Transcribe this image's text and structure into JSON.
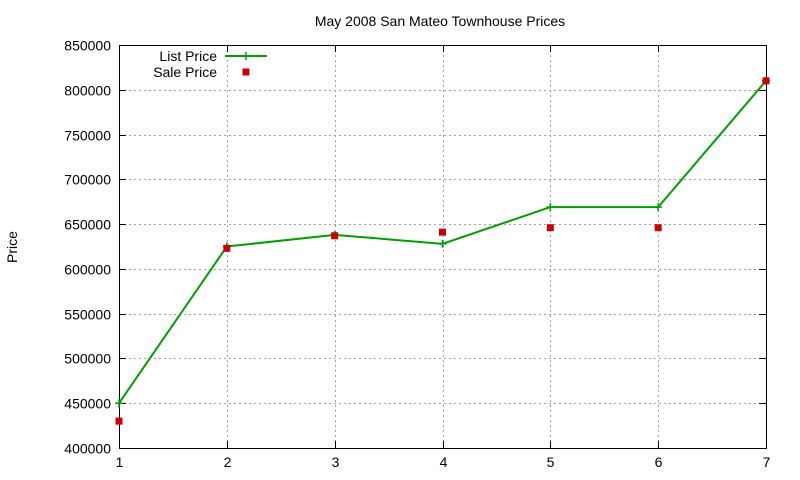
{
  "chart_data": {
    "type": "line",
    "title": "May 2008 San Mateo Townhouse Prices",
    "xlabel": "",
    "ylabel": "Price",
    "x": [
      1,
      2,
      3,
      4,
      5,
      6,
      7
    ],
    "xlim": [
      1,
      7
    ],
    "ylim": [
      400000,
      850000
    ],
    "yticks": [
      400000,
      450000,
      500000,
      550000,
      600000,
      650000,
      700000,
      750000,
      800000,
      850000
    ],
    "xticks": [
      1,
      2,
      3,
      4,
      5,
      6,
      7
    ],
    "grid": true,
    "legend_position": "top-left",
    "series": [
      {
        "name": "List Price",
        "style": "line-with-plus-markers",
        "color": "#00a000",
        "values": [
          450000,
          625000,
          638000,
          628000,
          669000,
          669000,
          810000
        ]
      },
      {
        "name": "Sale Price",
        "style": "square-points",
        "color": "#cc0000",
        "values": [
          430000,
          623000,
          637000,
          641000,
          646000,
          646000,
          810000
        ]
      }
    ]
  }
}
